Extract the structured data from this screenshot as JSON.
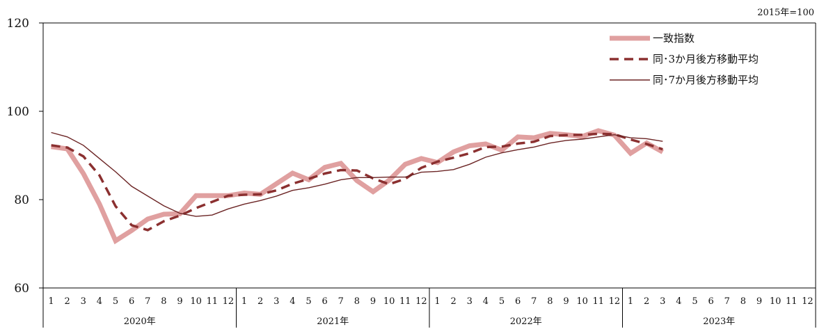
{
  "chart_data": {
    "type": "line",
    "unit_note": "2015年=100",
    "ylim": [
      60,
      120
    ],
    "yticks": [
      "60",
      "80",
      "100",
      "120"
    ],
    "grid": false,
    "legend_position": "top-right",
    "years": [
      "2020年",
      "2021年",
      "2022年",
      "2023年"
    ],
    "months": [
      "1",
      "2",
      "3",
      "4",
      "5",
      "6",
      "7",
      "8",
      "9",
      "10",
      "11",
      "12"
    ],
    "series": [
      {
        "name": "一致指数",
        "color": "#e0a0a0",
        "style": "thick",
        "values": [
          92.0,
          91.5,
          85.9,
          79.0,
          70.7,
          73.0,
          75.6,
          76.7,
          76.8,
          80.9,
          80.9,
          80.9,
          81.5,
          81.2,
          83.6,
          86.0,
          84.5,
          87.3,
          88.2,
          84.3,
          81.8,
          84.4,
          88.0,
          89.3,
          88.4,
          90.8,
          92.2,
          92.6,
          91.2,
          94.2,
          94.0,
          95.0,
          94.7,
          94.3,
          95.6,
          94.6,
          90.5,
          92.8,
          90.8
        ]
      },
      {
        "name": "同･3か月後方移動平均",
        "color": "#8b3030",
        "style": "dashed",
        "values": [
          92.3,
          91.8,
          89.8,
          85.5,
          78.5,
          74.2,
          73.1,
          75.1,
          76.4,
          78.1,
          79.5,
          80.9,
          81.1,
          81.2,
          82.1,
          83.6,
          84.7,
          85.9,
          86.7,
          86.6,
          84.8,
          83.5,
          84.7,
          87.2,
          88.6,
          89.5,
          90.5,
          91.9,
          92.0,
          92.7,
          93.1,
          94.4,
          94.6,
          94.7,
          94.9,
          94.8,
          93.6,
          92.6,
          91.4
        ]
      },
      {
        "name": "同･7か月後方移動平均",
        "color": "#6b2424",
        "style": "thin",
        "values": [
          95.2,
          94.2,
          92.3,
          89.3,
          86.3,
          83.0,
          80.8,
          78.6,
          76.9,
          76.2,
          76.5,
          77.9,
          79.0,
          79.8,
          80.8,
          82.1,
          82.7,
          83.5,
          84.5,
          85.0,
          85.0,
          85.1,
          85.1,
          86.2,
          86.4,
          86.8,
          88.0,
          89.6,
          90.6,
          91.3,
          91.9,
          92.8,
          93.4,
          93.7,
          94.2,
          94.7,
          94.0,
          93.8,
          93.2
        ]
      }
    ]
  }
}
